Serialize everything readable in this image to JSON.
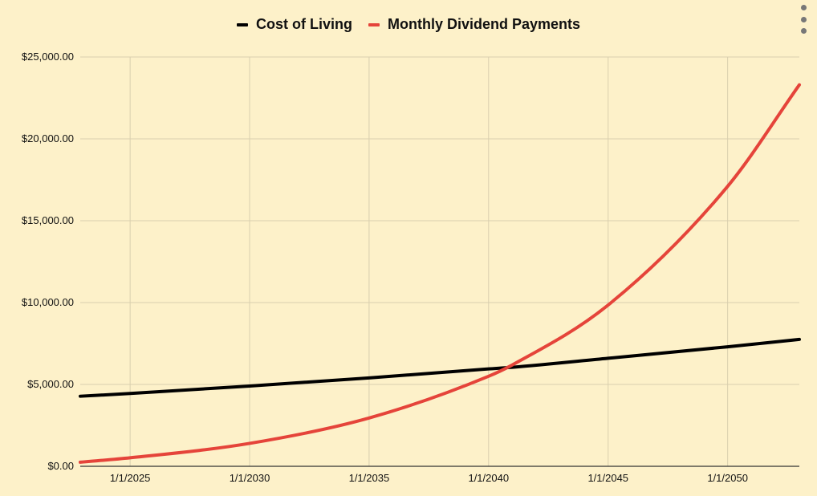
{
  "menu_icon": "kebab-menu-icon",
  "colors": {
    "background": "#fdf1c9",
    "grid": "#d9cfae",
    "cost": "#000000",
    "dividend": "#e5443a"
  },
  "chart_data": {
    "type": "line",
    "legend_position": "top",
    "grid": true,
    "xlim": [
      "2022-12-01",
      "2053-01-01"
    ],
    "ylim": [
      0,
      25000
    ],
    "x_ticks": [
      "1/1/2025",
      "1/1/2030",
      "1/1/2035",
      "1/1/2040",
      "1/1/2045",
      "1/1/2050"
    ],
    "y_ticks": [
      "$0.00",
      "$5,000.00",
      "$10,000.00",
      "$15,000.00",
      "$20,000.00",
      "$25,000.00"
    ],
    "x": [
      "2022-12-01",
      "2025-01-01",
      "2030-01-01",
      "2035-01-01",
      "2040-01-01",
      "2041-01-01",
      "2045-01-01",
      "2050-01-01",
      "2053-01-01"
    ],
    "series": [
      {
        "name": "Cost of Living",
        "color": "#000000",
        "values": [
          4280,
          4450,
          4900,
          5400,
          5950,
          6050,
          6600,
          7300,
          7750
        ]
      },
      {
        "name": "Monthly Dividend Payments",
        "color": "#e5443a",
        "values": [
          250,
          520,
          1400,
          2950,
          5500,
          6200,
          9850,
          17100,
          23300
        ]
      }
    ]
  }
}
